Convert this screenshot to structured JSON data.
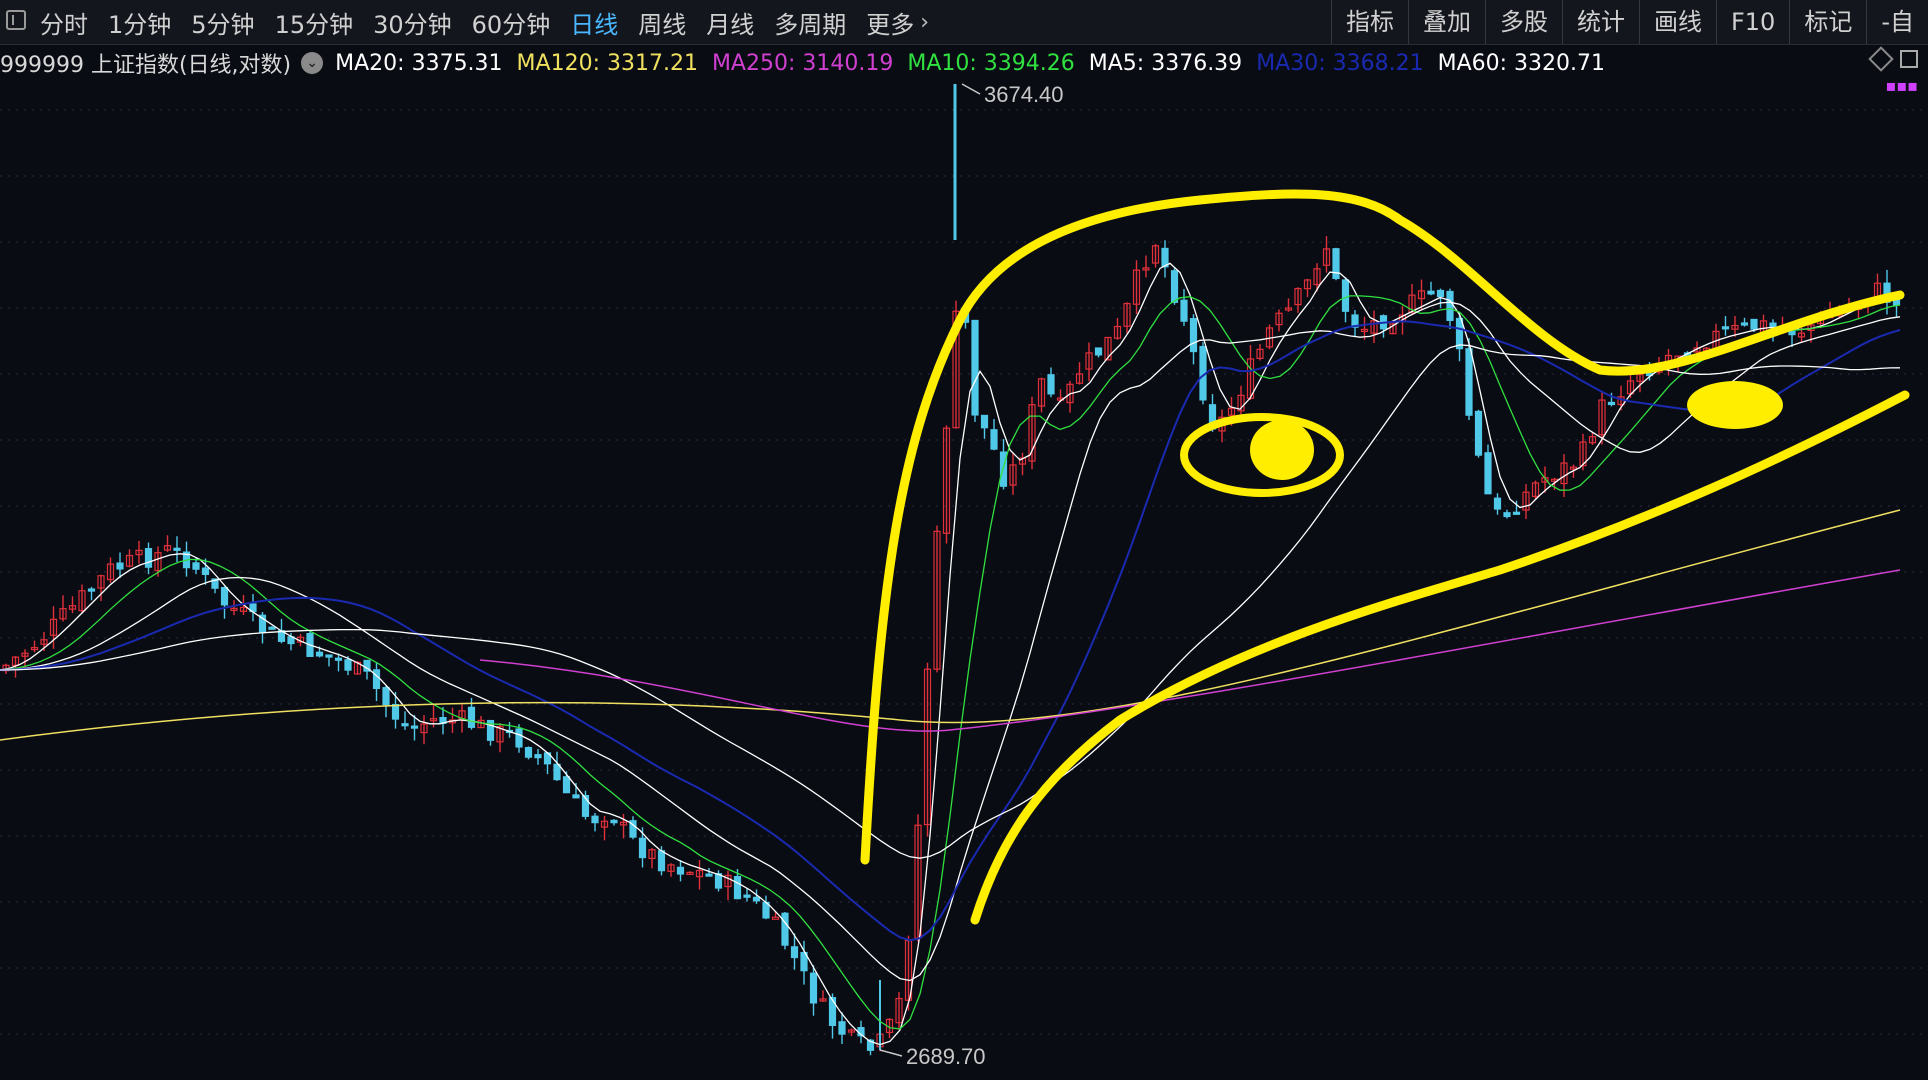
{
  "toolbar": {
    "periods": [
      "分时",
      "1分钟",
      "5分钟",
      "15分钟",
      "30分钟",
      "60分钟",
      "日线",
      "周线",
      "月线",
      "多周期",
      "更多"
    ],
    "active_period": "日线",
    "tools": [
      "指标",
      "叠加",
      "多股",
      "统计",
      "画线",
      "F10",
      "标记",
      "-自"
    ]
  },
  "legend": {
    "title": "999999 上证指数(日线,对数)",
    "ma20": "MA20: 3375.31",
    "ma120": "MA120: 3317.21",
    "ma250": "MA250: 3140.19",
    "ma10": "MA10: 3394.26",
    "ma5": "MA5: 3376.39",
    "ma30": "MA30: 3368.21",
    "ma60": "MA60: 3320.71"
  },
  "colors": {
    "background": "#0a0c14",
    "up": "#e0303a",
    "down": "#50c8e8",
    "ma5": "#ffffff",
    "ma10": "#e8e840",
    "ma20": "#ffffff",
    "ma30": "#1a2ab0",
    "ma60": "#ffffff",
    "ma120": "#f0e060",
    "ma250": "#d040d0",
    "ma10_label": "#30e040",
    "annotation": "#ffee00"
  },
  "chart_data": {
    "type": "candlestick",
    "high_label": "3674.40",
    "low_label": "2689.70",
    "y_scale": "log"
  }
}
